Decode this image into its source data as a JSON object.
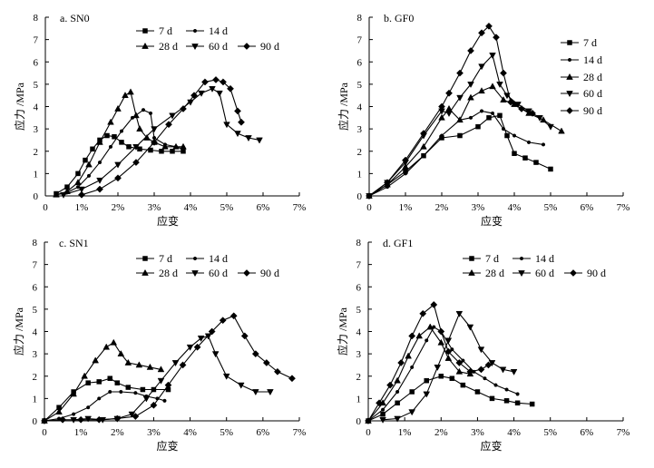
{
  "figure": {
    "y_tick_labels": [
      "0",
      "1",
      "2",
      "3",
      "4",
      "5",
      "6",
      "7",
      "8"
    ],
    "x_tick_labels": [
      "0",
      "1%",
      "2%",
      "3%",
      "4%",
      "5%",
      "6%",
      "7%"
    ]
  },
  "chart_data": [
    {
      "type": "line",
      "title": "a. SN0",
      "xlabel": "应变",
      "ylabel": "应力 /MPa",
      "xlim": [
        0,
        7
      ],
      "ylim": [
        0,
        8
      ],
      "legend_position": "top",
      "series": [
        {
          "name": "7 d",
          "marker": "square",
          "x": [
            0.3,
            0.6,
            0.9,
            1.1,
            1.3,
            1.5,
            1.7,
            1.9,
            2.1,
            2.3,
            2.6,
            2.9,
            3.2,
            3.5,
            3.8
          ],
          "y": [
            0.1,
            0.4,
            1,
            1.6,
            2.1,
            2.5,
            2.7,
            2.65,
            2.4,
            2.2,
            2.1,
            2.05,
            2.0,
            2.0,
            2.0
          ]
        },
        {
          "name": "14 d",
          "marker": "dot",
          "x": [
            0.3,
            0.6,
            0.9,
            1.2,
            1.5,
            1.8,
            2.1,
            2.4,
            2.7,
            2.9,
            3.0,
            3.3,
            3.6,
            3.8
          ],
          "y": [
            0.05,
            0.15,
            0.4,
            0.9,
            1.5,
            2.2,
            2.9,
            3.5,
            3.85,
            3.7,
            2.6,
            2.3,
            2.2,
            2.1
          ]
        },
        {
          "name": "28 d",
          "marker": "triangle",
          "x": [
            0.3,
            0.6,
            0.9,
            1.2,
            1.5,
            1.8,
            2.0,
            2.2,
            2.35,
            2.5,
            2.6,
            2.8,
            3.0,
            3.3,
            3.6,
            3.8
          ],
          "y": [
            0.05,
            0.2,
            0.6,
            1.4,
            2.4,
            3.3,
            3.9,
            4.5,
            4.65,
            3.6,
            3.0,
            2.6,
            2.4,
            2.2,
            2.2,
            2.2
          ]
        },
        {
          "name": "60 d",
          "marker": "triangle-down",
          "x": [
            0.5,
            1.0,
            1.5,
            2.0,
            2.5,
            3.0,
            3.5,
            4.0,
            4.3,
            4.6,
            4.8,
            5.0,
            5.3,
            5.6,
            5.9
          ],
          "y": [
            0.05,
            0.3,
            0.7,
            1.4,
            2.2,
            3.0,
            3.6,
            4.2,
            4.6,
            4.8,
            4.6,
            3.2,
            2.8,
            2.6,
            2.5
          ]
        },
        {
          "name": "90 d",
          "marker": "diamond",
          "x": [
            1.0,
            1.5,
            2.0,
            2.5,
            3.0,
            3.4,
            3.8,
            4.1,
            4.4,
            4.7,
            4.9,
            5.1,
            5.3,
            5.4
          ],
          "y": [
            0.05,
            0.3,
            0.8,
            1.5,
            2.4,
            3.2,
            3.9,
            4.5,
            5.1,
            5.2,
            5.1,
            4.8,
            3.8,
            3.3
          ]
        }
      ]
    },
    {
      "type": "line",
      "title": "b. GF0",
      "xlabel": "应变",
      "ylabel": "应力 /MPa",
      "xlim": [
        0,
        7
      ],
      "ylim": [
        0,
        8
      ],
      "legend_position": "right",
      "series": [
        {
          "name": "7 d",
          "marker": "square",
          "x": [
            0.0,
            0.5,
            1.0,
            1.5,
            2.0,
            2.5,
            3.0,
            3.3,
            3.6,
            3.8,
            4.0,
            4.3,
            4.6,
            5.0
          ],
          "y": [
            0.0,
            0.5,
            1.1,
            1.8,
            2.6,
            2.7,
            3.1,
            3.5,
            3.6,
            2.7,
            1.9,
            1.7,
            1.5,
            1.2
          ]
        },
        {
          "name": "14 d",
          "marker": "dot",
          "x": [
            0.0,
            0.5,
            1.0,
            1.5,
            2.0,
            2.5,
            2.8,
            3.1,
            3.4,
            3.7,
            4.0,
            4.4,
            4.8
          ],
          "y": [
            0.0,
            0.4,
            1.0,
            1.8,
            2.7,
            3.4,
            3.5,
            3.8,
            3.7,
            3.0,
            2.7,
            2.4,
            2.3
          ]
        },
        {
          "name": "28 d",
          "marker": "triangle",
          "x": [
            0.0,
            0.5,
            1.0,
            1.5,
            2.0,
            2.2,
            2.5,
            2.8,
            3.1,
            3.4,
            3.7,
            4.0,
            4.4,
            4.8,
            5.3
          ],
          "y": [
            0.0,
            0.5,
            1.3,
            2.2,
            3.5,
            3.9,
            3.4,
            4.4,
            4.7,
            4.9,
            4.3,
            4.1,
            3.7,
            3.4,
            2.9
          ]
        },
        {
          "name": "60 d",
          "marker": "triangle-down",
          "x": [
            0.0,
            0.5,
            1.0,
            1.5,
            2.0,
            2.2,
            2.5,
            2.8,
            3.1,
            3.4,
            3.6,
            3.8,
            4.1,
            4.4,
            4.7,
            5.0
          ],
          "y": [
            0.0,
            0.6,
            1.5,
            2.7,
            3.8,
            3.7,
            4.4,
            5.0,
            5.8,
            6.3,
            5.0,
            4.5,
            4.1,
            3.8,
            3.5,
            3.1
          ]
        },
        {
          "name": "90 d",
          "marker": "diamond",
          "x": [
            0.0,
            0.5,
            1.0,
            1.5,
            2.0,
            2.2,
            2.5,
            2.8,
            3.1,
            3.3,
            3.5,
            3.7,
            3.9,
            4.2,
            4.5
          ],
          "y": [
            0.0,
            0.6,
            1.6,
            2.8,
            4.0,
            4.6,
            5.5,
            6.5,
            7.3,
            7.6,
            7.1,
            5.5,
            4.2,
            3.9,
            3.7
          ]
        }
      ]
    },
    {
      "type": "line",
      "title": "c. SN1",
      "xlabel": "应变",
      "ylabel": "应力 /MPa",
      "xlim": [
        0,
        7
      ],
      "ylim": [
        0,
        8
      ],
      "legend_position": "top",
      "series": [
        {
          "name": "7 d",
          "marker": "square",
          "x": [
            0.0,
            0.4,
            0.8,
            1.2,
            1.5,
            1.8,
            2.0,
            2.3,
            2.7,
            3.0,
            3.4
          ],
          "y": [
            0.0,
            0.6,
            1.3,
            1.7,
            1.75,
            1.9,
            1.7,
            1.5,
            1.4,
            1.4,
            1.4
          ]
        },
        {
          "name": "14 d",
          "marker": "dot",
          "x": [
            0.0,
            0.4,
            0.8,
            1.2,
            1.5,
            1.8,
            2.1,
            2.5,
            2.8,
            3.1,
            3.3
          ],
          "y": [
            0.0,
            0.1,
            0.3,
            0.6,
            1.0,
            1.3,
            1.3,
            1.25,
            1.1,
            1.0,
            0.9
          ]
        },
        {
          "name": "28 d",
          "marker": "triangle",
          "x": [
            0.0,
            0.4,
            0.8,
            1.1,
            1.4,
            1.7,
            1.9,
            2.1,
            2.3,
            2.6,
            2.9,
            3.2
          ],
          "y": [
            0.0,
            0.4,
            1.2,
            2.0,
            2.7,
            3.3,
            3.5,
            3.0,
            2.6,
            2.5,
            2.4,
            2.3
          ]
        },
        {
          "name": "60 d",
          "marker": "triangle-down",
          "x": [
            0.8,
            1.2,
            1.6,
            2.0,
            2.4,
            2.8,
            3.2,
            3.6,
            4.0,
            4.3,
            4.5,
            4.7,
            5.0,
            5.4,
            5.8,
            6.2
          ],
          "y": [
            0.05,
            0.1,
            0.05,
            0.1,
            0.3,
            1.0,
            1.8,
            2.6,
            3.3,
            3.7,
            3.8,
            3.0,
            2.0,
            1.6,
            1.3,
            1.3
          ]
        },
        {
          "name": "90 d",
          "marker": "diamond",
          "x": [
            0.0,
            0.5,
            1.0,
            1.5,
            2.0,
            2.5,
            3.0,
            3.4,
            3.8,
            4.2,
            4.6,
            4.9,
            5.2,
            5.5,
            5.8,
            6.1,
            6.4,
            6.8
          ],
          "y": [
            0.0,
            0.05,
            0.05,
            0.05,
            0.1,
            0.2,
            0.7,
            1.6,
            2.5,
            3.3,
            4.0,
            4.5,
            4.7,
            3.8,
            3.0,
            2.6,
            2.2,
            1.9
          ]
        }
      ]
    },
    {
      "type": "line",
      "title": "d. GF1",
      "xlabel": "应变",
      "ylabel": "应力 /MPa",
      "xlim": [
        0,
        7
      ],
      "ylim": [
        0,
        8
      ],
      "legend_position": "top",
      "series": [
        {
          "name": "7 d",
          "marker": "square",
          "x": [
            0.0,
            0.4,
            0.8,
            1.2,
            1.6,
            2.0,
            2.3,
            2.6,
            3.0,
            3.4,
            3.8,
            4.1,
            4.5
          ],
          "y": [
            0.0,
            0.3,
            0.8,
            1.3,
            1.8,
            2.0,
            1.9,
            1.6,
            1.3,
            1.0,
            0.9,
            0.8,
            0.75
          ]
        },
        {
          "name": "14 d",
          "marker": "dot",
          "x": [
            0.0,
            0.4,
            0.8,
            1.2,
            1.6,
            1.8,
            2.0,
            2.3,
            2.6,
            2.9,
            3.2,
            3.5,
            3.8,
            4.1
          ],
          "y": [
            0.0,
            0.5,
            1.3,
            2.4,
            3.6,
            4.2,
            4.0,
            3.2,
            2.7,
            2.2,
            1.9,
            1.6,
            1.4,
            1.2
          ]
        },
        {
          "name": "28 d",
          "marker": "triangle",
          "x": [
            0.0,
            0.4,
            0.8,
            1.1,
            1.4,
            1.7,
            2.0,
            2.2,
            2.5,
            2.8
          ],
          "y": [
            0.0,
            0.8,
            1.8,
            2.9,
            3.8,
            4.2,
            3.5,
            2.8,
            2.2,
            2.1
          ]
        },
        {
          "name": "60 d",
          "marker": "triangle-down",
          "x": [
            0.4,
            0.8,
            1.2,
            1.6,
            1.9,
            2.2,
            2.5,
            2.8,
            3.1,
            3.4,
            3.7,
            4.0
          ],
          "y": [
            0.05,
            0.1,
            0.4,
            1.2,
            2.4,
            3.6,
            4.8,
            4.2,
            3.2,
            2.6,
            2.3,
            2.2
          ]
        },
        {
          "name": "90 d",
          "marker": "diamond",
          "x": [
            0.0,
            0.3,
            0.6,
            0.9,
            1.2,
            1.5,
            1.8,
            2.0,
            2.2,
            2.5,
            2.8,
            3.1,
            3.3
          ],
          "y": [
            0.0,
            0.8,
            1.6,
            2.6,
            3.8,
            4.8,
            5.2,
            4.0,
            3.1,
            2.6,
            2.2,
            2.3,
            2.5
          ]
        }
      ]
    }
  ]
}
